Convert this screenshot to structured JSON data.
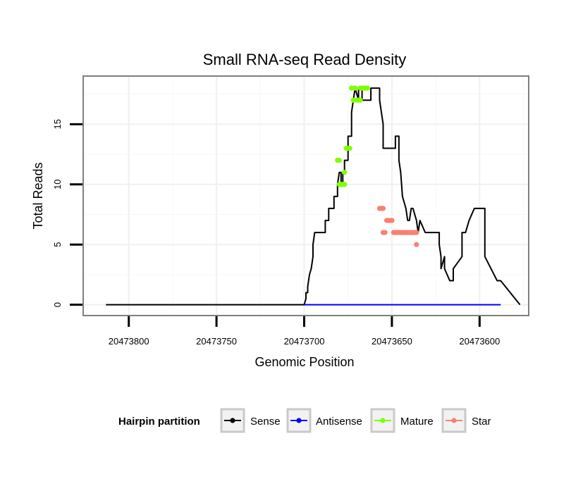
{
  "chart_data": {
    "type": "line",
    "title": "Small RNA-seq Read Density",
    "xlabel": "Genomic Position",
    "ylabel": "Total Reads",
    "xlim": [
      20473826,
      20473572
    ],
    "x_reversed": true,
    "ylim": [
      -0.9,
      19.0
    ],
    "xticks": [
      20473800,
      20473750,
      20473700,
      20473650,
      20473600
    ],
    "xtick_labels": [
      "20473800",
      "20473750",
      "20473700",
      "20473650",
      "20473600"
    ],
    "yticks": [
      0,
      5,
      10,
      15
    ],
    "ytick_labels": [
      "0",
      "5",
      "10",
      "15"
    ],
    "grid": true,
    "legend_position": "bottom",
    "legend": {
      "title": "Hairpin partition",
      "items": [
        {
          "label": "Sense",
          "color": "#000000"
        },
        {
          "label": "Antisense",
          "color": "#0000ff"
        },
        {
          "label": "Mature",
          "color": "#7fff00"
        },
        {
          "label": "Star",
          "color": "#fa8072"
        }
      ]
    },
    "series": [
      {
        "name": "Sense",
        "color": "#000000",
        "style": "line",
        "x": [
          20473813,
          20473700,
          20473699,
          20473699,
          20473698,
          20473698,
          20473697,
          20473696,
          20473695,
          20473695,
          20473694,
          20473693,
          20473693,
          20473688,
          20473688,
          20473686,
          20473686,
          20473683,
          20473683,
          20473681,
          20473681,
          20473680,
          20473679,
          20473679,
          20473678,
          20473678,
          20473677,
          20473677,
          20473675,
          20473675,
          20473673,
          20473673,
          20473671,
          20473669,
          20473669,
          20473667,
          20473667,
          20473665,
          20473663,
          20473662,
          20473662,
          20473661,
          20473660,
          20473657,
          20473657,
          20473656,
          20473655,
          20473655,
          20473654,
          20473652,
          20473651,
          20473648,
          20473648,
          20473646,
          20473646,
          20473645,
          20473645,
          20473644,
          20473642,
          20473641,
          20473640,
          20473639,
          20473638,
          20473636,
          20473635,
          20473635,
          20473634,
          20473631,
          20473630,
          20473629,
          20473628,
          20473625,
          20473625,
          20473623,
          20473623,
          20473622,
          20473622,
          20473620,
          20473620,
          20473617,
          20473617,
          20473615,
          20473615,
          20473610,
          20473610,
          20473608,
          20473606,
          20473606,
          20473603,
          20473603,
          20473600,
          20473597,
          20473597,
          20473590,
          20473588,
          20473577
        ],
        "y": [
          0,
          0,
          0.5,
          1,
          1,
          1.5,
          2.5,
          3,
          4,
          5,
          6,
          6,
          6,
          6,
          7,
          7,
          8,
          8,
          9,
          9,
          10,
          11,
          11,
          10,
          10,
          11,
          11,
          12,
          12,
          14,
          14,
          16,
          18,
          17,
          18,
          18,
          17,
          17,
          17,
          17,
          18,
          18,
          18,
          18,
          17,
          16,
          15,
          13,
          13,
          13,
          13,
          13,
          14,
          14,
          12,
          11,
          11,
          9,
          8,
          7,
          7,
          8,
          8,
          7,
          6,
          6,
          7,
          6,
          6,
          6,
          6,
          6,
          6,
          6,
          5,
          4,
          3,
          4,
          3,
          2,
          2,
          2,
          3,
          4,
          6,
          6,
          7,
          7,
          8,
          8,
          8,
          8,
          4,
          2,
          2,
          0
        ]
      },
      {
        "name": "Antisense",
        "color": "#0000ff",
        "style": "line",
        "x": [
          20473700,
          20473588
        ],
        "y": [
          0,
          0
        ]
      },
      {
        "name": "Mature",
        "color": "#7fff00",
        "style": "points",
        "x": [
          20473681,
          20473681,
          20473680,
          20473680,
          20473679,
          20473679,
          20473679,
          20473678,
          20473678,
          20473677,
          20473677,
          20473677,
          20473676,
          20473675,
          20473675,
          20473675,
          20473674,
          20473673,
          20473673,
          20473672,
          20473672,
          20473671,
          20473671,
          20473670,
          20473670,
          20473669,
          20473669,
          20473668,
          20473668,
          20473667,
          20473667,
          20473666,
          20473666,
          20473665,
          20473665,
          20473664,
          20473664
        ],
        "y": [
          12,
          12,
          12,
          10,
          10,
          10,
          10,
          10,
          10,
          10,
          11,
          10,
          13,
          13,
          13,
          13,
          13,
          18,
          18,
          17,
          17,
          18,
          18,
          17,
          17,
          17,
          17,
          17,
          18,
          18,
          18,
          18,
          18,
          18,
          18,
          18,
          18
        ]
      },
      {
        "name": "Star",
        "color": "#fa8072",
        "style": "points",
        "x": [
          20473657,
          20473656,
          20473656,
          20473655,
          20473655,
          20473654,
          20473654,
          20473653,
          20473652,
          20473652,
          20473651,
          20473651,
          20473650,
          20473650,
          20473649,
          20473648,
          20473648,
          20473647,
          20473646,
          20473646,
          20473645,
          20473644,
          20473644,
          20473643,
          20473642,
          20473642,
          20473641,
          20473641,
          20473640,
          20473639,
          20473639,
          20473638,
          20473638,
          20473637,
          20473636,
          20473636
        ],
        "y": [
          8,
          8,
          8,
          8,
          6,
          6,
          6,
          7,
          7,
          7,
          7,
          7,
          7,
          7,
          6,
          6,
          6,
          6,
          6,
          6,
          6,
          6,
          6,
          6,
          6,
          6,
          6,
          6,
          6,
          6,
          6,
          6,
          6,
          6,
          6,
          5
        ]
      }
    ]
  }
}
